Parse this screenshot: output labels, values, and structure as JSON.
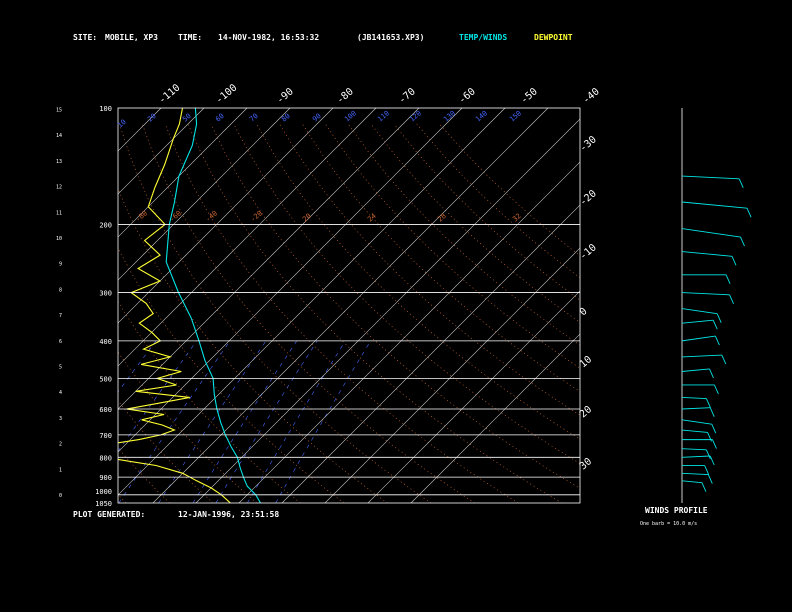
{
  "header": {
    "site_label": "SITE:",
    "site_value": "MOBILE, XP3",
    "time_label": "TIME:",
    "time_value": "14-NOV-1982, 16:53:32",
    "file_value": "(JB141653.XP3)",
    "temp_winds_label": "TEMP/WINDS",
    "dewpoint_label": "DEWPOINT"
  },
  "footer": {
    "plot_generated_label": "PLOT GENERATED:",
    "plot_generated_value": "12-JAN-1996, 23:51:58"
  },
  "winds_panel": {
    "title": "WINDS PROFILE",
    "note": "One barb = 10.0 m/s"
  },
  "colors": {
    "temperature": "#00e5e5",
    "dewpoint": "#ffff33",
    "isobars": "#ffffff",
    "isotherms": "#cccccc",
    "dry_adiabats": "#cc6633",
    "moist_adiabats": "#cc6633",
    "mixing_ratio": "#4466ff"
  },
  "chart_data": {
    "type": "line",
    "subtype": "skew-t log-p sounding",
    "ylabel": "",
    "xlabel": "",
    "pressure_levels": [
      "100",
      "200",
      "300",
      "400",
      "500",
      "600",
      "700",
      "800",
      "900",
      "1000",
      "1050"
    ],
    "height_ticks": [
      "0",
      "1",
      "2",
      "3",
      "4",
      "5",
      "6",
      "7",
      "8",
      "9",
      "10",
      "11",
      "12",
      "13",
      "14",
      "15"
    ],
    "isotherm_labels_top": [
      "-110",
      "-100",
      "-90",
      "-80",
      "-70",
      "-60",
      "-50",
      "-40"
    ],
    "isotherm_labels_right": [
      "-30",
      "-20",
      "-10",
      "0",
      "10",
      "20",
      "30"
    ],
    "dry_adiabat_labels": [
      "-80",
      "-60",
      "-40",
      "-20",
      "20",
      "24",
      "28",
      "32"
    ],
    "mixing_ratio_labels": [
      "10",
      "20",
      "50",
      "60",
      "70",
      "80",
      "90",
      "100",
      "110",
      "120",
      "130",
      "140",
      "150"
    ],
    "ylim": [
      1050,
      100
    ],
    "y_scale": "log",
    "series": [
      {
        "name": "TEMP/WINDS",
        "pressure": [
          1050,
          1000,
          950,
          900,
          850,
          800,
          750,
          700,
          650,
          600,
          550,
          500,
          450,
          400,
          350,
          300,
          250,
          200,
          175,
          150,
          125,
          110,
          100
        ],
        "temperature": [
          25,
          22,
          18,
          15,
          12,
          9,
          5,
          1,
          -3,
          -7,
          -11,
          -15,
          -21,
          -27,
          -34,
          -43,
          -53,
          -61,
          -65,
          -70,
          -74,
          -78,
          -82
        ]
      },
      {
        "name": "DEWPOINT",
        "pressure": [
          1050,
          1000,
          960,
          920,
          880,
          840,
          800,
          780,
          760,
          740,
          720,
          700,
          680,
          660,
          640,
          620,
          600,
          580,
          560,
          540,
          520,
          500,
          480,
          460,
          440,
          420,
          400,
          380,
          360,
          340,
          320,
          300,
          280,
          260,
          240,
          220,
          200,
          180,
          160,
          140,
          120,
          110,
          100
        ],
        "temperature": [
          18,
          14,
          10,
          5,
          0,
          -8,
          -22,
          -26,
          -30,
          -24,
          -18,
          -14,
          -12,
          -16,
          -22,
          -18,
          -28,
          -22,
          -16,
          -30,
          -22,
          -28,
          -24,
          -35,
          -30,
          -38,
          -36,
          -40,
          -45,
          -44,
          -48,
          -54,
          -50,
          -58,
          -56,
          -63,
          -62,
          -70,
          -73,
          -76,
          -80,
          -82,
          -85
        ]
      }
    ],
    "winds_profile": {
      "type": "wind barbs",
      "pressure": [
        150,
        175,
        205,
        235,
        270,
        300,
        330,
        360,
        400,
        440,
        480,
        520,
        560,
        600,
        640,
        680,
        720,
        760,
        800,
        840,
        880,
        920
      ],
      "direction_deg": [
        280,
        290,
        300,
        290,
        270,
        280,
        300,
        250,
        240,
        260,
        250,
        270,
        280,
        260,
        300,
        290,
        270,
        280,
        260,
        270,
        280,
        290
      ],
      "speed_ms": [
        25,
        30,
        28,
        22,
        18,
        20,
        15,
        12,
        14,
        16,
        10,
        12,
        8,
        10,
        12,
        9,
        11,
        8,
        10,
        7,
        9,
        6
      ]
    }
  }
}
